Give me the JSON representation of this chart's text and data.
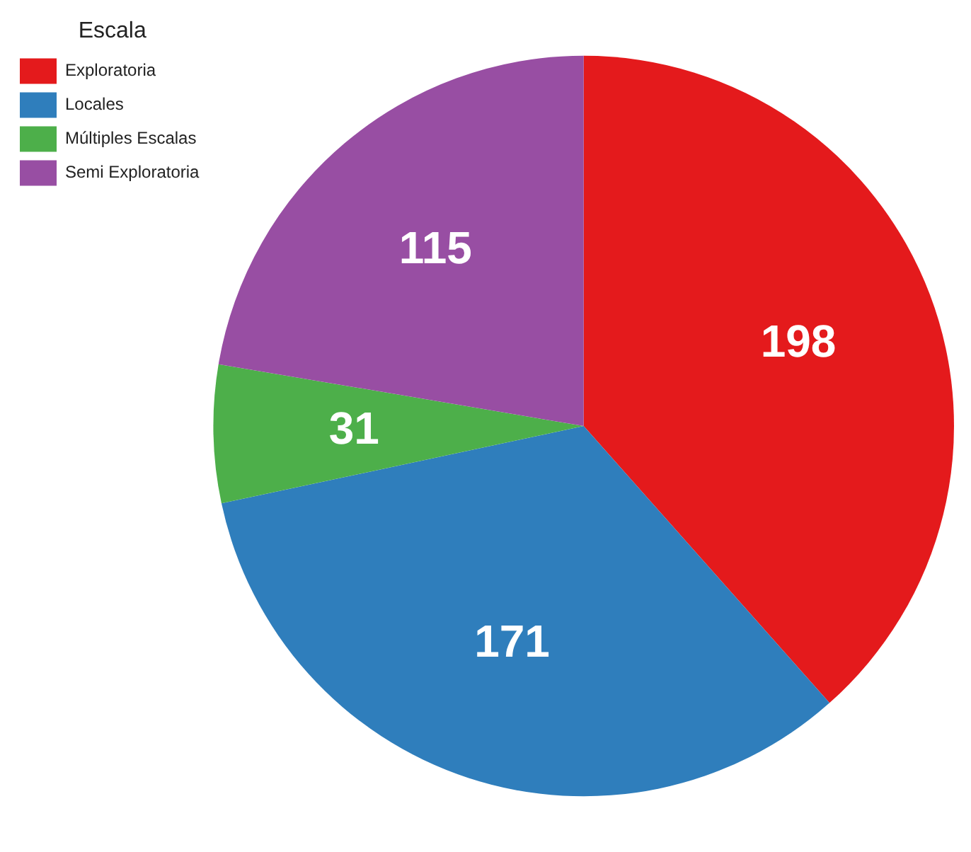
{
  "chart_data": {
    "type": "pie",
    "legend_title": "Escala",
    "legend": "top left",
    "data_labels": true,
    "categories": [
      "Exploratoria",
      "Locales",
      "Múltiples Escalas",
      "Semi Exploratoria"
    ],
    "values": [
      198,
      171,
      31,
      115
    ],
    "colors": [
      "#e41a1c",
      "#2f7ebc",
      "#4daf4a",
      "#984ea3"
    ]
  }
}
